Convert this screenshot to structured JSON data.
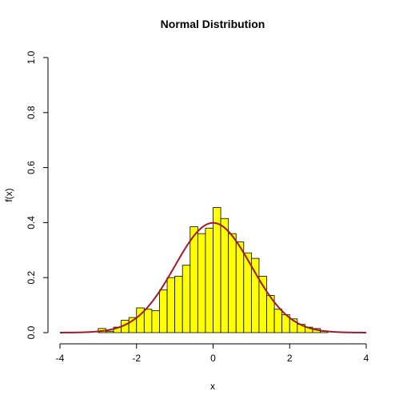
{
  "chart_data": {
    "type": "bar",
    "title": "Normal Distribution",
    "xlabel": "x",
    "ylabel": "f(x)",
    "xlim": [
      -4,
      4
    ],
    "ylim": [
      0,
      1.0
    ],
    "x_ticks": [
      "-4",
      "-2",
      "0",
      "2",
      "4"
    ],
    "y_ticks": [
      "0.0",
      "0.2",
      "0.4",
      "0.6",
      "0.8",
      "1.0"
    ],
    "bin_width": 0.2,
    "bins_start": [
      -3.0,
      -2.8,
      -2.6,
      -2.4,
      -2.2,
      -2.0,
      -1.8,
      -1.6,
      -1.4,
      -1.2,
      -1.0,
      -0.8,
      -0.6,
      -0.4,
      -0.2,
      0.0,
      0.2,
      0.4,
      0.6,
      0.8,
      1.0,
      1.2,
      1.4,
      1.6,
      1.8,
      2.0,
      2.2,
      2.4,
      2.6,
      2.8
    ],
    "density_values": [
      0.015,
      0.005,
      0.02,
      0.045,
      0.055,
      0.09,
      0.085,
      0.08,
      0.155,
      0.2,
      0.205,
      0.245,
      0.385,
      0.36,
      0.38,
      0.455,
      0.415,
      0.36,
      0.33,
      0.29,
      0.27,
      0.205,
      0.135,
      0.085,
      0.065,
      0.05,
      0.03,
      0.02,
      0.015,
      0.005
    ],
    "bar_fill_color": "#ffff00",
    "bar_stroke_color": "#000000",
    "curve": {
      "type": "normal-density",
      "mean": 0,
      "sd": 1,
      "color": "#a0182a"
    },
    "grid": false
  }
}
